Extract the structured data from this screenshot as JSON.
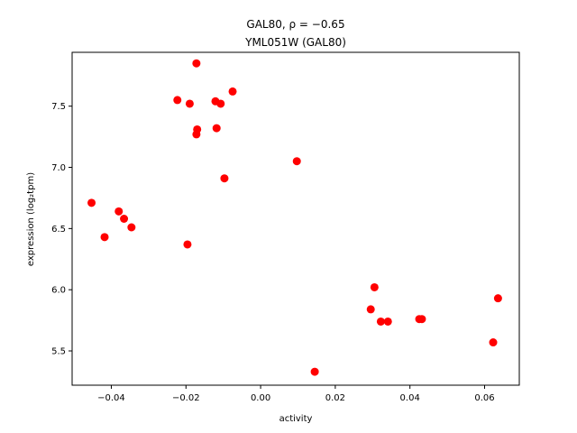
{
  "chart_data": {
    "type": "scatter",
    "title_line1": "GAL80, ρ = −0.65",
    "title_line2": "YML051W (GAL80)",
    "xlabel": "activity",
    "ylabel": "expression (log₂tpm)",
    "xlim": [
      -0.0505,
      0.0693
    ],
    "ylim": [
      5.22,
      7.94
    ],
    "x_ticks": [
      -0.04,
      -0.02,
      0.0,
      0.02,
      0.04,
      0.06
    ],
    "x_tick_labels": [
      "−0.04",
      "−0.02",
      "0.00",
      "0.02",
      "0.04",
      "0.06"
    ],
    "y_ticks": [
      5.5,
      6.0,
      6.5,
      7.0,
      7.5
    ],
    "y_tick_labels": [
      "5.5",
      "6.0",
      "6.5",
      "7.0",
      "7.5"
    ],
    "grid": false,
    "marker_color": "#ff0000",
    "points": [
      {
        "x": -0.0453,
        "y": 6.71
      },
      {
        "x": -0.0418,
        "y": 6.43
      },
      {
        "x": -0.038,
        "y": 6.64
      },
      {
        "x": -0.0366,
        "y": 6.58
      },
      {
        "x": -0.0346,
        "y": 6.51
      },
      {
        "x": -0.0223,
        "y": 7.55
      },
      {
        "x": -0.0196,
        "y": 6.37
      },
      {
        "x": -0.019,
        "y": 7.52
      },
      {
        "x": -0.0172,
        "y": 7.85
      },
      {
        "x": -0.017,
        "y": 7.31
      },
      {
        "x": -0.0172,
        "y": 7.27
      },
      {
        "x": -0.0121,
        "y": 7.54
      },
      {
        "x": -0.0118,
        "y": 7.32
      },
      {
        "x": -0.0107,
        "y": 7.52
      },
      {
        "x": -0.0097,
        "y": 6.91
      },
      {
        "x": -0.0075,
        "y": 7.62
      },
      {
        "x": 0.0097,
        "y": 7.05
      },
      {
        "x": 0.0145,
        "y": 5.33
      },
      {
        "x": 0.0295,
        "y": 5.84
      },
      {
        "x": 0.0305,
        "y": 6.02
      },
      {
        "x": 0.0322,
        "y": 5.74
      },
      {
        "x": 0.0341,
        "y": 5.74
      },
      {
        "x": 0.0425,
        "y": 5.76
      },
      {
        "x": 0.0432,
        "y": 5.76
      },
      {
        "x": 0.0623,
        "y": 5.57
      },
      {
        "x": 0.0636,
        "y": 5.93
      }
    ]
  }
}
